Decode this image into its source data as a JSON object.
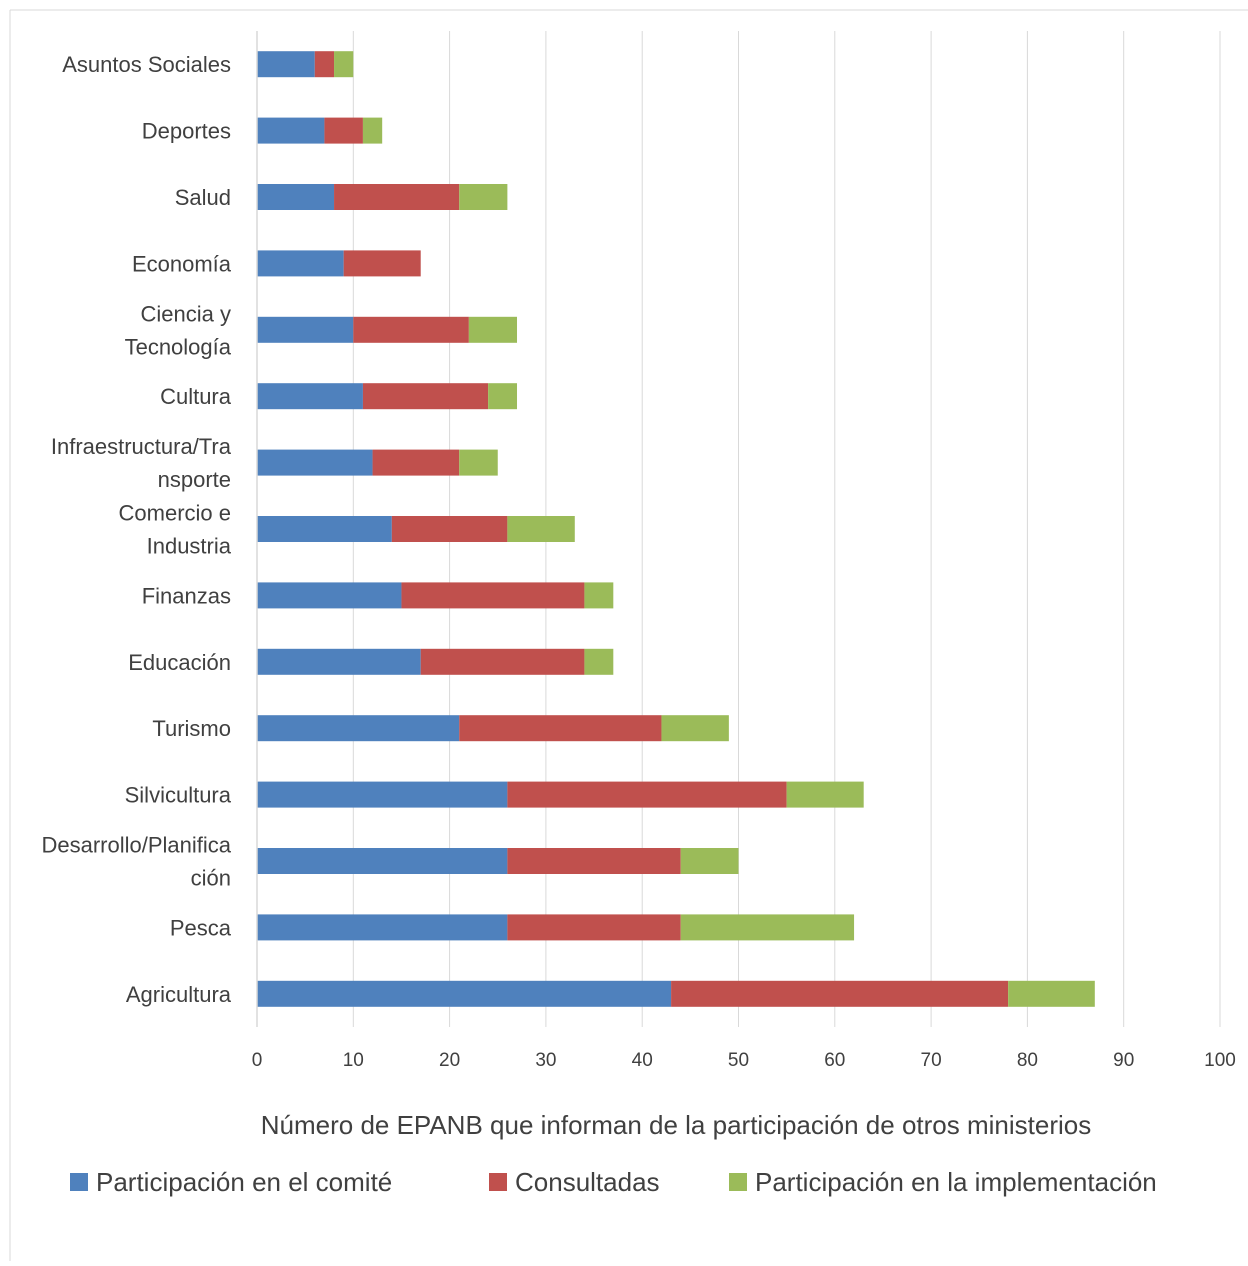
{
  "chart_data": {
    "type": "bar",
    "orientation": "horizontal",
    "stacked": true,
    "categories": [
      [
        "Asuntos Sociales"
      ],
      [
        "Deportes"
      ],
      [
        "Salud"
      ],
      [
        "Economía"
      ],
      [
        "Ciencia y",
        "Tecnología"
      ],
      [
        "Cultura"
      ],
      [
        "Infraestructura/Tra",
        "nsporte"
      ],
      [
        "Comercio e",
        "Industria"
      ],
      [
        "Finanzas"
      ],
      [
        "Educación"
      ],
      [
        "Turismo"
      ],
      [
        "Silvicultura"
      ],
      [
        "Desarrollo/Planifica",
        "ción"
      ],
      [
        "Pesca"
      ],
      [
        "Agricultura"
      ]
    ],
    "series": [
      {
        "name": "Participación en el comité",
        "color": "#4f81bd",
        "values": [
          6,
          7,
          8,
          9,
          10,
          11,
          12,
          14,
          15,
          17,
          21,
          26,
          26,
          26,
          43
        ]
      },
      {
        "name": "Consultadas",
        "color": "#c0504d",
        "values": [
          2,
          4,
          13,
          8,
          12,
          13,
          9,
          12,
          19,
          17,
          21,
          29,
          18,
          18,
          35
        ]
      },
      {
        "name": "Participación en la implementación",
        "color": "#9bbb59",
        "values": [
          2,
          2,
          5,
          0,
          5,
          3,
          4,
          7,
          3,
          3,
          7,
          8,
          6,
          18,
          9
        ]
      }
    ],
    "xlabel": "Número de EPANB que informan de la participación de otros ministerios",
    "ylabel": "",
    "xlim": [
      0,
      100
    ],
    "xticks": [
      "0",
      "10",
      "20",
      "30",
      "40",
      "50",
      "60",
      "70",
      "80",
      "90",
      "100"
    ],
    "grid": "vertical",
    "legend": "bottom"
  }
}
